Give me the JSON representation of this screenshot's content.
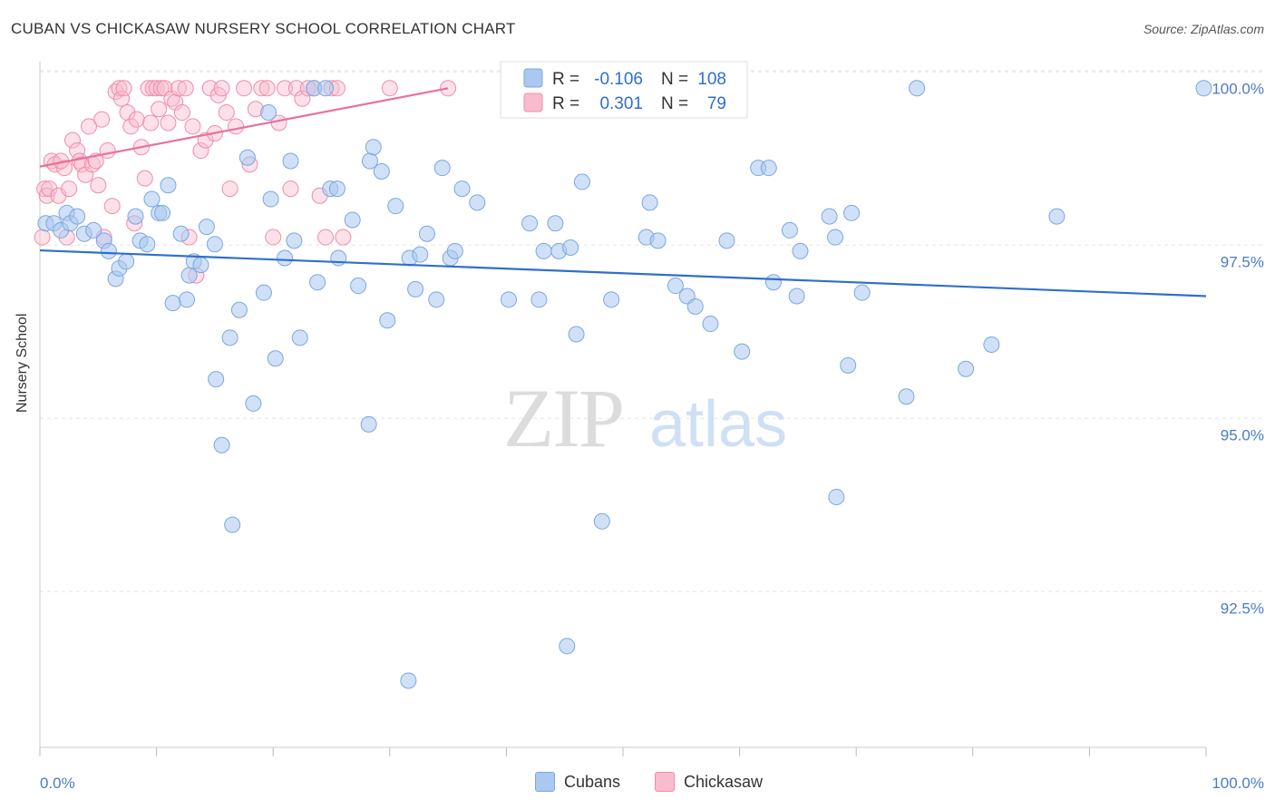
{
  "title": "CUBAN VS CHICKASAW NURSERY SCHOOL CORRELATION CHART",
  "source": "Source: ZipAtlas.com",
  "watermark": {
    "zip": "ZIP",
    "atlas": "atlas"
  },
  "chart_data": {
    "type": "scatter",
    "xlabel": "",
    "ylabel": "Nursery School",
    "xlim": [
      0,
      100
    ],
    "ylim": [
      90.8,
      100.5
    ],
    "x_tick_labels": [
      "0.0%",
      "100.0%"
    ],
    "y_ticks": [
      92.5,
      95.0,
      97.5,
      100.0
    ],
    "y_tick_labels": [
      "92.5%",
      "95.0%",
      "97.5%",
      "100.0%"
    ],
    "grid": "horizontal dashed",
    "legend_position": "top-center",
    "legend": [
      {
        "name": "Cubans",
        "r_label": "R =",
        "r": "-0.106",
        "n_label": "N =",
        "n": "108",
        "color": "#7ba7e0",
        "fill": "#aac8f0",
        "line_color": "#2f6fcc"
      },
      {
        "name": "Chickasaw",
        "r_label": "R =",
        "r": "0.301",
        "n_label": "N =",
        "n": "79",
        "color": "#f08cab",
        "fill": "#f8bccf",
        "line_color": "#e8729a"
      }
    ],
    "series": [
      {
        "name": "Cubans",
        "trend": {
          "x0": 0,
          "y0": 97.66,
          "x1": 100,
          "y1": 97.0
        },
        "points": [
          [
            0.5,
            98.05
          ],
          [
            1.2,
            98.05
          ],
          [
            1.8,
            97.95
          ],
          [
            2.3,
            98.2
          ],
          [
            2.6,
            98.05
          ],
          [
            3.2,
            98.15
          ],
          [
            3.8,
            97.9
          ],
          [
            4.6,
            97.95
          ],
          [
            5.5,
            97.8
          ],
          [
            5.9,
            97.65
          ],
          [
            6.5,
            97.25
          ],
          [
            6.8,
            97.4
          ],
          [
            7.4,
            97.5
          ],
          [
            8.2,
            98.15
          ],
          [
            8.6,
            97.8
          ],
          [
            9.2,
            97.75
          ],
          [
            9.6,
            98.4
          ],
          [
            10.2,
            98.2
          ],
          [
            10.5,
            98.2
          ],
          [
            11.0,
            98.6
          ],
          [
            11.4,
            96.9
          ],
          [
            12.1,
            97.9
          ],
          [
            12.6,
            96.95
          ],
          [
            12.8,
            97.3
          ],
          [
            13.2,
            97.5
          ],
          [
            13.8,
            97.45
          ],
          [
            14.3,
            98.0
          ],
          [
            15.0,
            97.75
          ],
          [
            15.1,
            95.8
          ],
          [
            15.6,
            94.85
          ],
          [
            16.3,
            96.4
          ],
          [
            16.5,
            93.7
          ],
          [
            17.1,
            96.8
          ],
          [
            17.8,
            99.0
          ],
          [
            18.3,
            95.45
          ],
          [
            19.2,
            97.05
          ],
          [
            19.6,
            99.65
          ],
          [
            19.8,
            98.4
          ],
          [
            20.2,
            96.1
          ],
          [
            21.0,
            97.55
          ],
          [
            21.5,
            98.95
          ],
          [
            21.8,
            97.8
          ],
          [
            22.3,
            96.4
          ],
          [
            23.5,
            100.0
          ],
          [
            23.8,
            97.2
          ],
          [
            24.5,
            100.0
          ],
          [
            24.9,
            98.55
          ],
          [
            25.5,
            98.55
          ],
          [
            25.6,
            97.55
          ],
          [
            26.8,
            98.1
          ],
          [
            27.3,
            97.15
          ],
          [
            28.2,
            95.15
          ],
          [
            28.3,
            98.95
          ],
          [
            28.6,
            99.15
          ],
          [
            29.3,
            98.8
          ],
          [
            29.8,
            96.65
          ],
          [
            30.5,
            98.3
          ],
          [
            31.6,
            91.45
          ],
          [
            31.7,
            97.55
          ],
          [
            32.2,
            97.1
          ],
          [
            32.6,
            97.6
          ],
          [
            33.2,
            97.9
          ],
          [
            34.0,
            96.95
          ],
          [
            34.5,
            98.85
          ],
          [
            35.2,
            97.55
          ],
          [
            35.6,
            97.65
          ],
          [
            36.2,
            98.55
          ],
          [
            37.5,
            98.35
          ],
          [
            40.2,
            96.95
          ],
          [
            42.0,
            98.05
          ],
          [
            42.8,
            96.95
          ],
          [
            43.2,
            97.65
          ],
          [
            44.2,
            98.05
          ],
          [
            44.5,
            97.65
          ],
          [
            45.2,
            91.95
          ],
          [
            45.5,
            97.7
          ],
          [
            46.0,
            96.45
          ],
          [
            46.5,
            98.65
          ],
          [
            48.2,
            93.75
          ],
          [
            49.0,
            96.95
          ],
          [
            51.0,
            100.0
          ],
          [
            52.0,
            97.85
          ],
          [
            52.3,
            98.35
          ],
          [
            53.0,
            97.8
          ],
          [
            54.5,
            97.15
          ],
          [
            55.5,
            97.0
          ],
          [
            56.2,
            96.85
          ],
          [
            57.5,
            96.6
          ],
          [
            58.9,
            97.8
          ],
          [
            60.2,
            96.2
          ],
          [
            61.6,
            98.85
          ],
          [
            62.5,
            98.85
          ],
          [
            62.9,
            97.2
          ],
          [
            64.3,
            97.95
          ],
          [
            64.9,
            97.0
          ],
          [
            65.2,
            97.65
          ],
          [
            67.7,
            98.15
          ],
          [
            68.2,
            97.85
          ],
          [
            68.3,
            94.1
          ],
          [
            69.3,
            96.0
          ],
          [
            69.6,
            98.2
          ],
          [
            70.5,
            97.05
          ],
          [
            74.3,
            95.55
          ],
          [
            75.2,
            100.0
          ],
          [
            79.4,
            95.95
          ],
          [
            81.6,
            96.3
          ],
          [
            87.2,
            98.15
          ],
          [
            99.8,
            100.0
          ]
        ]
      },
      {
        "name": "Chickasaw",
        "trend": {
          "x0": 0,
          "y0": 98.87,
          "x1": 35,
          "y1": 100.0
        },
        "points": [
          [
            0.2,
            97.85
          ],
          [
            0.4,
            98.55
          ],
          [
            0.6,
            98.45
          ],
          [
            0.8,
            98.55
          ],
          [
            1.0,
            98.95
          ],
          [
            1.3,
            98.9
          ],
          [
            1.6,
            98.45
          ],
          [
            2.1,
            98.85
          ],
          [
            2.3,
            97.85
          ],
          [
            2.5,
            98.55
          ],
          [
            2.8,
            99.25
          ],
          [
            3.2,
            99.1
          ],
          [
            3.4,
            98.95
          ],
          [
            3.6,
            98.9
          ],
          [
            3.9,
            98.75
          ],
          [
            4.2,
            99.45
          ],
          [
            4.5,
            98.9
          ],
          [
            4.8,
            98.95
          ],
          [
            5.0,
            98.6
          ],
          [
            5.3,
            99.55
          ],
          [
            5.5,
            97.85
          ],
          [
            5.8,
            99.1
          ],
          [
            6.2,
            98.3
          ],
          [
            6.5,
            99.95
          ],
          [
            6.8,
            100.0
          ],
          [
            7.0,
            99.85
          ],
          [
            7.2,
            100.0
          ],
          [
            7.5,
            99.65
          ],
          [
            7.8,
            99.45
          ],
          [
            8.1,
            98.05
          ],
          [
            8.3,
            99.55
          ],
          [
            8.7,
            99.15
          ],
          [
            9.0,
            98.7
          ],
          [
            9.3,
            100.0
          ],
          [
            9.5,
            99.5
          ],
          [
            9.7,
            100.0
          ],
          [
            10.0,
            100.0
          ],
          [
            10.2,
            99.7
          ],
          [
            10.4,
            100.0
          ],
          [
            10.7,
            100.0
          ],
          [
            11.0,
            99.5
          ],
          [
            11.3,
            99.85
          ],
          [
            11.6,
            99.8
          ],
          [
            11.9,
            100.0
          ],
          [
            12.2,
            99.65
          ],
          [
            12.5,
            100.0
          ],
          [
            12.8,
            97.85
          ],
          [
            13.1,
            99.45
          ],
          [
            13.4,
            97.3
          ],
          [
            13.8,
            99.1
          ],
          [
            14.2,
            99.25
          ],
          [
            14.6,
            100.0
          ],
          [
            15.0,
            99.35
          ],
          [
            15.3,
            99.9
          ],
          [
            15.6,
            100.0
          ],
          [
            16.0,
            99.65
          ],
          [
            16.3,
            98.55
          ],
          [
            16.8,
            99.45
          ],
          [
            17.5,
            100.0
          ],
          [
            18.0,
            98.9
          ],
          [
            18.5,
            99.7
          ],
          [
            19.0,
            100.0
          ],
          [
            19.5,
            100.0
          ],
          [
            20.0,
            97.85
          ],
          [
            20.5,
            99.5
          ],
          [
            21.0,
            100.0
          ],
          [
            21.5,
            98.55
          ],
          [
            22.0,
            100.0
          ],
          [
            22.5,
            99.85
          ],
          [
            23.0,
            100.0
          ],
          [
            23.5,
            100.0
          ],
          [
            24.0,
            98.45
          ],
          [
            24.5,
            97.85
          ],
          [
            25.0,
            100.0
          ],
          [
            25.5,
            100.0
          ],
          [
            26.0,
            97.85
          ],
          [
            30.0,
            100.0
          ],
          [
            35.0,
            100.0
          ],
          [
            1.8,
            98.95
          ]
        ]
      }
    ]
  }
}
